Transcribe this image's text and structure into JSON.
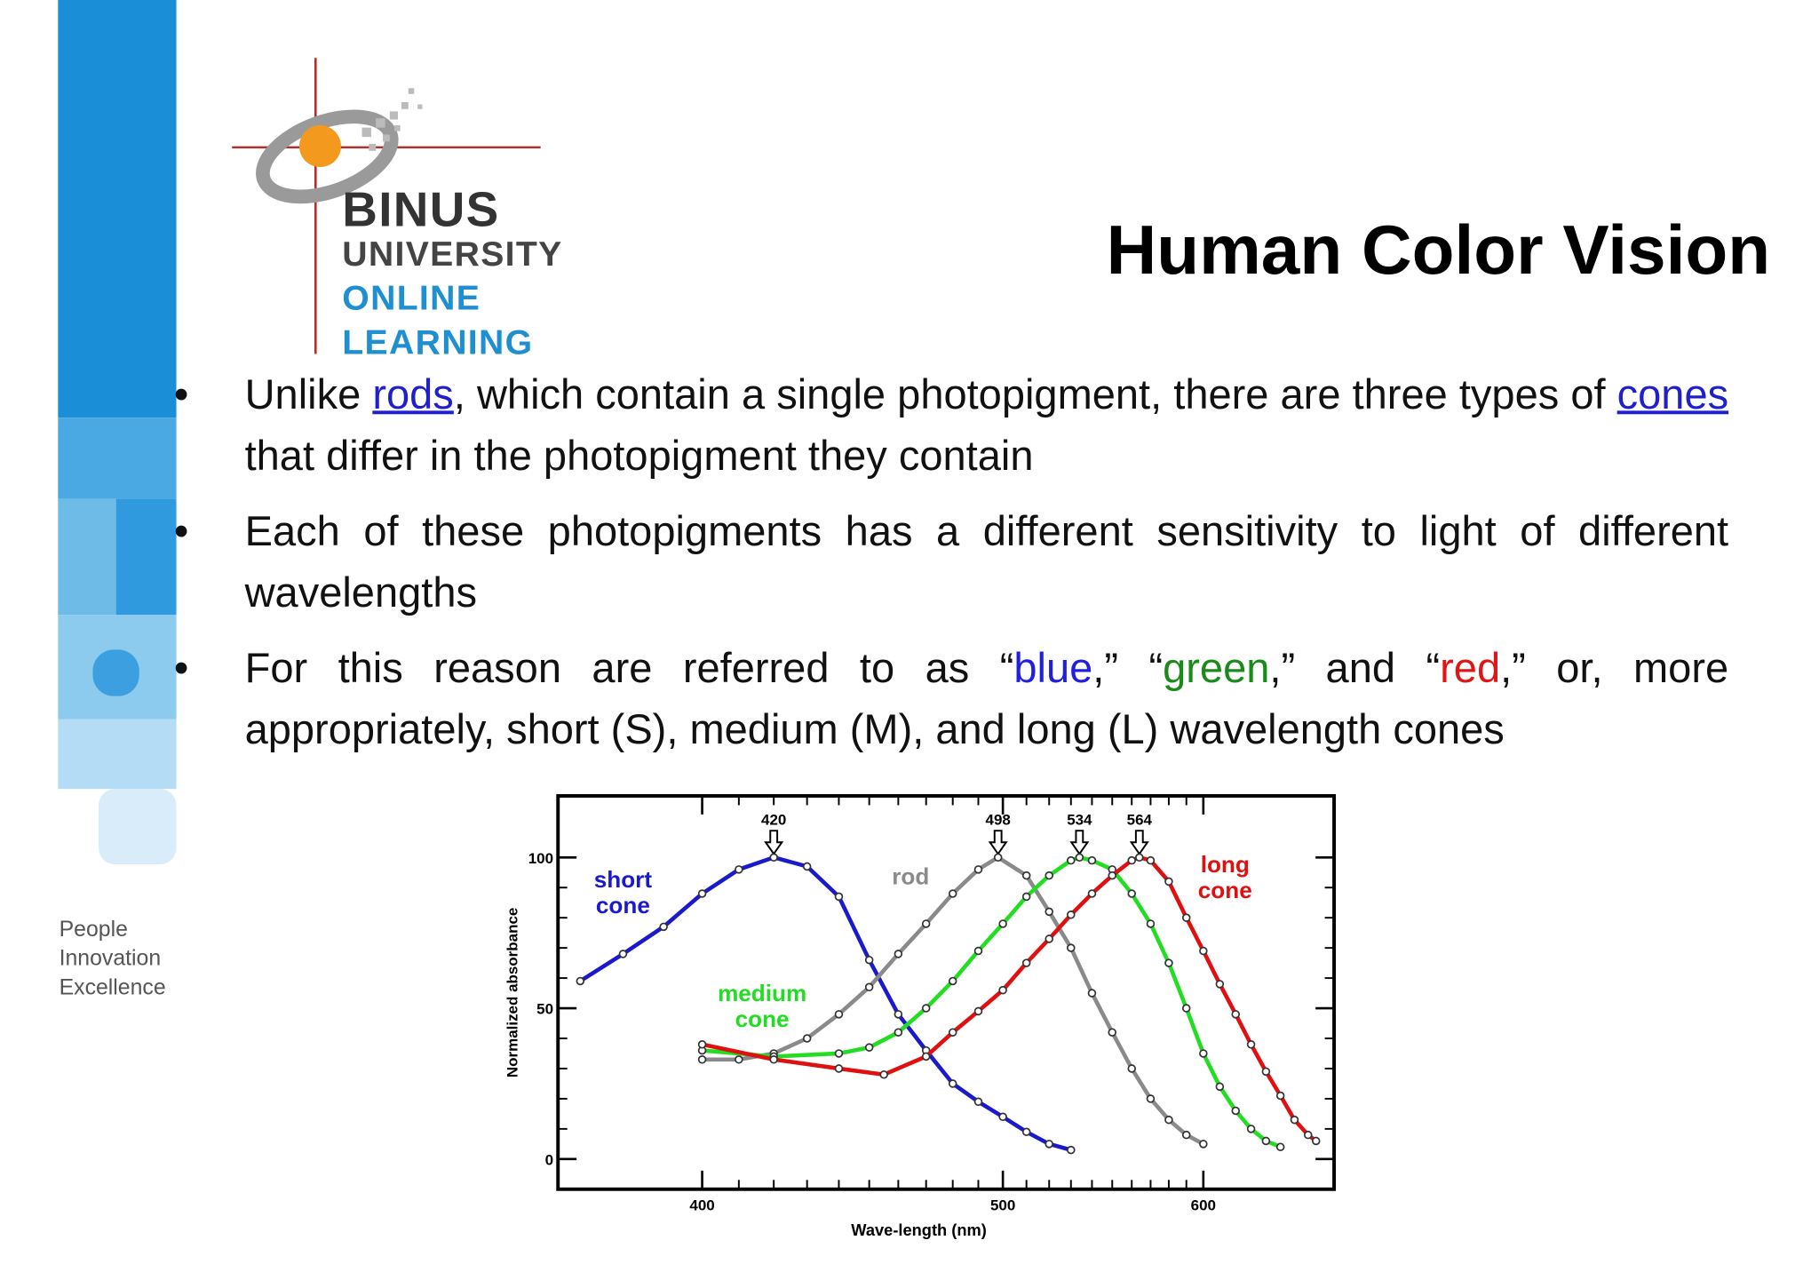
{
  "logo": {
    "name": "BINUS",
    "line1": "UNIVERSITY",
    "line2": "ONLINE",
    "line3": "LEARNING"
  },
  "motto": [
    "People",
    "Innovation",
    "Excellence"
  ],
  "title": "Human Color Vision",
  "bullets": [
    [
      "Unlike ",
      "rods",
      ", which contain a single photopigment, there are three types of ",
      "cones",
      " that differ in the photopigment they contain"
    ],
    [
      "Each of these photopigments has a different sensitivity to light of different wavelengths"
    ],
    [
      "For this reason are referred to as “",
      "blue",
      ",” “",
      "green",
      ",” and “",
      "red",
      ",” or, more appropriately, short (S), medium (M), and long (L) wavelength cones"
    ]
  ],
  "figure": {
    "xlabel": "Wave-length (nm)",
    "ylabel": "Normalized absorbance",
    "x_scale": "reciprocal",
    "xlim": [
      365,
      690
    ],
    "ylim": [
      -10,
      120.4
    ],
    "xticks": [
      400,
      500,
      600
    ],
    "yticks": [
      0,
      50,
      100
    ],
    "peaks": [
      420,
      498,
      534,
      564
    ],
    "curves": [
      {
        "label": [
          "short",
          "cone"
        ],
        "color": "#1a1acc",
        "wavelengths": [
          370,
          380,
          390,
          400,
          410,
          420,
          430,
          440,
          450,
          460,
          470,
          480,
          490,
          500,
          510,
          520,
          530
        ],
        "values": [
          59,
          68,
          77,
          88,
          96,
          100,
          97,
          87,
          66,
          48,
          36,
          25,
          19,
          14,
          9,
          5,
          3
        ]
      },
      {
        "label": [
          "rod"
        ],
        "color": "#8a8a8a",
        "wavelengths": [
          400,
          410,
          420,
          430,
          440,
          450,
          460,
          470,
          480,
          490,
          498,
          510,
          520,
          530,
          540,
          550,
          560,
          570,
          580,
          590,
          600
        ],
        "values": [
          33,
          33,
          35,
          40,
          48,
          57,
          68,
          78,
          88,
          96,
          100,
          94,
          82,
          70,
          55,
          42,
          30,
          20,
          13,
          8,
          5
        ]
      },
      {
        "label": [
          "medium",
          "cone"
        ],
        "color": "#22dd22",
        "wavelengths": [
          400,
          420,
          440,
          450,
          460,
          470,
          480,
          490,
          500,
          510,
          520,
          530,
          534,
          540,
          550,
          560,
          570,
          580,
          590,
          600,
          610,
          620,
          630,
          640,
          650
        ],
        "values": [
          36,
          34,
          35,
          37,
          42,
          50,
          59,
          69,
          78,
          87,
          94,
          99,
          100,
          99,
          96,
          88,
          78,
          65,
          50,
          35,
          24,
          16,
          10,
          6,
          4
        ]
      },
      {
        "label": [
          "long",
          "cone"
        ],
        "color": "#e01010",
        "wavelengths": [
          400,
          420,
          440,
          455,
          470,
          480,
          490,
          500,
          510,
          520,
          530,
          540,
          550,
          560,
          564,
          570,
          580,
          590,
          600,
          610,
          620,
          630,
          640,
          650,
          660,
          670,
          676
        ],
        "values": [
          38,
          33,
          30,
          28,
          34,
          42,
          49,
          56,
          65,
          73,
          81,
          88,
          94,
          99,
          100,
          99,
          92,
          80,
          69,
          58,
          48,
          38,
          29,
          21,
          13,
          8,
          6
        ]
      }
    ]
  }
}
